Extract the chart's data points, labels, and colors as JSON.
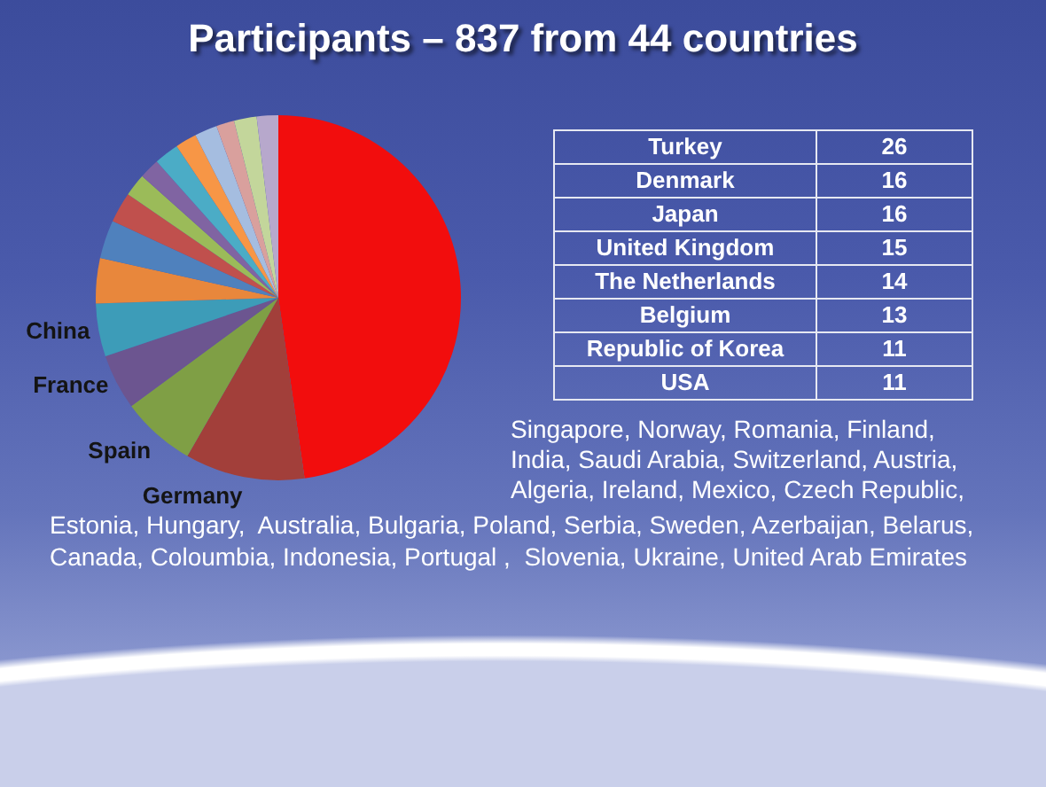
{
  "chart_data": [
    {
      "type": "pie",
      "title": "Participants – 837 from 44 countries",
      "categories": [
        null,
        "Germany",
        "Spain",
        "France",
        "China",
        null,
        null,
        null,
        null,
        null,
        null,
        null,
        null,
        null,
        null,
        null
      ],
      "values": [
        47.7,
        10.6,
        6.6,
        4.9,
        4.7,
        4.0,
        3.4,
        2.7,
        2.0,
        1.8,
        2.2,
        1.9,
        2.0,
        1.6,
        2.0,
        1.9
      ],
      "colors": [
        "#f20d0d",
        "#a23f3a",
        "#7f9f45",
        "#6c5590",
        "#3d9cb8",
        "#e8873c",
        "#4f81bd",
        "#c0504d",
        "#9bbb59",
        "#8064a2",
        "#4bacc6",
        "#f79646",
        "#a5bde0",
        "#d9a09d",
        "#c3d69b",
        "#b7a8cc"
      ],
      "annotations": [
        "Singapore, Norway, Romania, Finland,",
        "India, Saudi Arabia, Switzerland, Austria,",
        "Algeria, Ireland, Mexico, Czech Republic,",
        "Estonia, Hungary,  Australia, Bulgaria, Poland, Serbia, Sweden, Azerbaijan, Belarus,",
        "Canada, Coloumbia, Indonesia, Portugal ,  Slovenia, Ukraine, United Arab Emirates"
      ]
    },
    {
      "type": "other",
      "categories": [
        "Turkey",
        "Denmark",
        "Japan",
        "United Kingdom",
        "The Netherlands",
        "Belgium",
        "Republic of Korea",
        "USA"
      ],
      "values": [
        26,
        16,
        16,
        15,
        14,
        13,
        11,
        11
      ],
      "data_labels": true
    }
  ]
}
